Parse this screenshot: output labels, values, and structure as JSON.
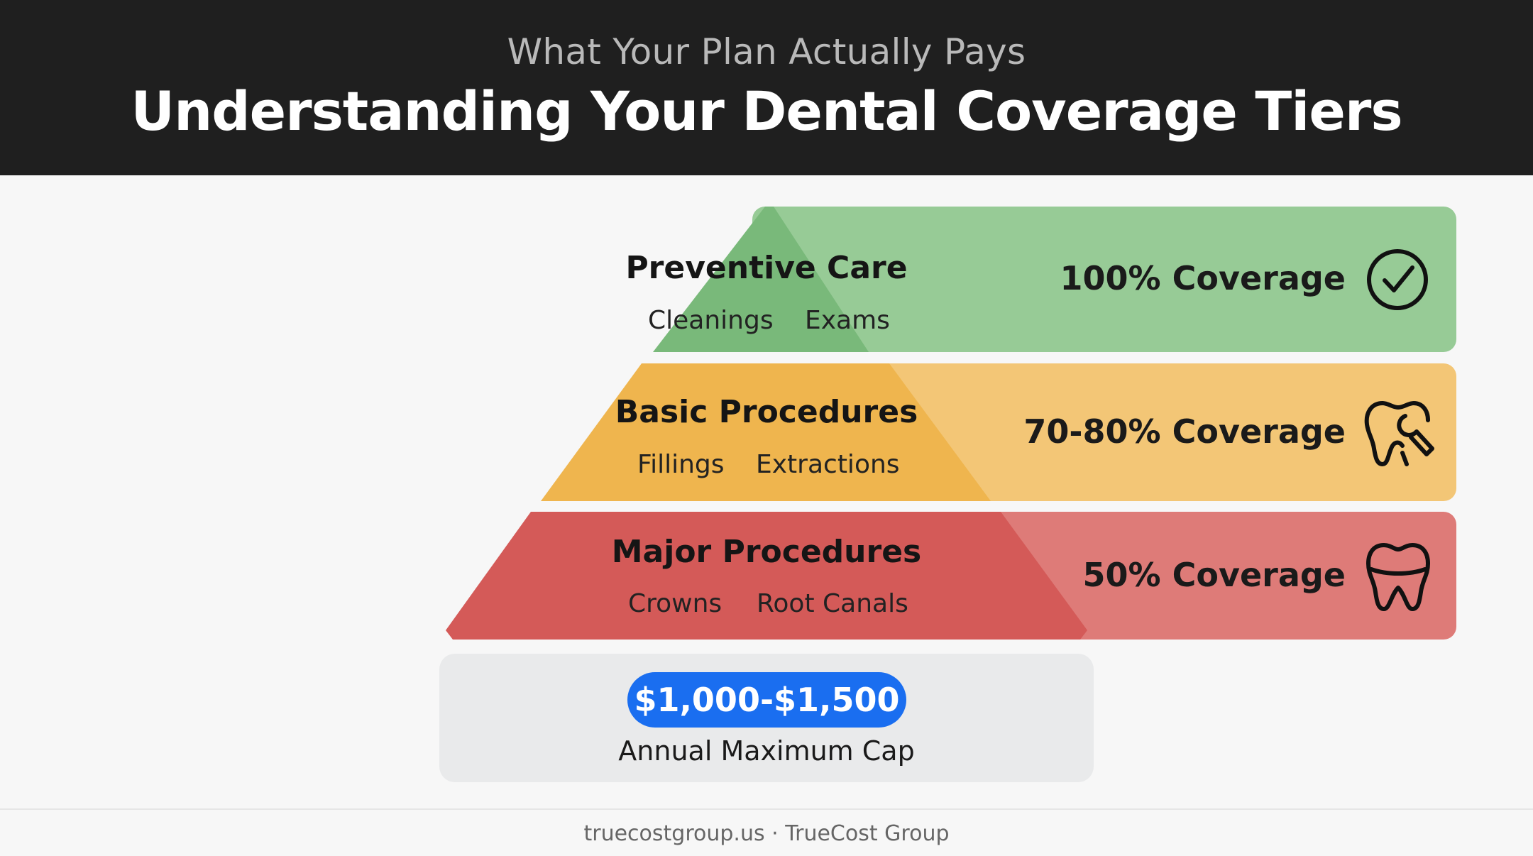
{
  "header": {
    "subtitle": "What Your Plan Actually Pays",
    "title": "Understanding Your Dental Coverage Tiers"
  },
  "tiers": [
    {
      "name": "Preventive Care",
      "items": [
        "Cleanings",
        "Exams"
      ],
      "coverage": "100% Coverage",
      "icon": "checkmark-circle-icon",
      "bar_color": "#97cb96",
      "triangle_color": "#79b97a"
    },
    {
      "name": "Basic Procedures",
      "items": [
        "Fillings",
        "Extractions"
      ],
      "coverage": "70-80% Coverage",
      "icon": "tooth-wrench-icon",
      "bar_color": "#f3c676",
      "triangle_color": "#efb54e"
    },
    {
      "name": "Major Procedures",
      "items": [
        "Crowns",
        "Root Canals"
      ],
      "coverage": "50% Coverage",
      "icon": "tooth-icon",
      "bar_color": "#de7b78",
      "triangle_color": "#d45a58"
    }
  ],
  "annual_cap": {
    "amount": "$1,000-$1,500",
    "label": "Annual Maximum Cap",
    "pill_color": "#1a6ef0"
  },
  "footer": {
    "text": "truecostgroup.us · TrueCost Group"
  }
}
